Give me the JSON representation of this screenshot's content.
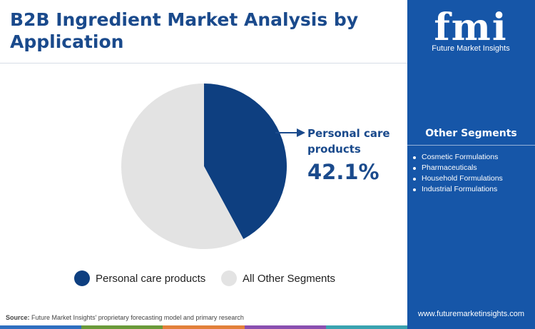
{
  "title": "B2B Ingredient Market Analysis by Application",
  "chart_data": {
    "type": "pie",
    "slices": [
      {
        "label": "Personal care products",
        "value": 42.1,
        "color": "#0e3f80"
      },
      {
        "label": "All Other Segments",
        "value": 57.9,
        "color": "#e3e3e3"
      }
    ],
    "callout": {
      "label": "Personal care products",
      "value": "42.1%"
    },
    "legend": [
      "Personal care products",
      "All Other Segments"
    ]
  },
  "source": {
    "prefix": "Source:",
    "text": "Future Market Insights' proprietary forecasting model and primary research"
  },
  "sidebar": {
    "logo": {
      "letters": "fmi",
      "tagline": "Future Market Insights"
    },
    "heading": "Other Segments",
    "items": [
      "Cosmetic Formulations",
      "Pharmaceuticals",
      "Household Formulations",
      "Industrial Formulations"
    ],
    "website": "www.futuremarketinsights.com"
  },
  "colors": {
    "brand_blue": "#1656a8",
    "title_blue": "#1a4a8c",
    "bottom_bar": [
      "#2f6fc0",
      "#6a9a3a",
      "#e2803a",
      "#8a4fb0",
      "#3aa3b0"
    ]
  }
}
